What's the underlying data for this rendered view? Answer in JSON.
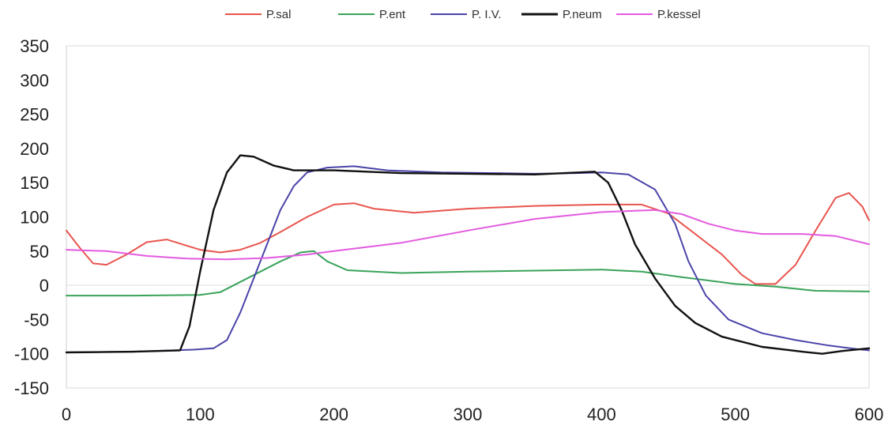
{
  "chart_data": {
    "type": "line",
    "title": "",
    "xlabel": "",
    "ylabel": "",
    "xlim": [
      0,
      600
    ],
    "ylim": [
      -150,
      350
    ],
    "xticks": [
      "0",
      "100",
      "200",
      "300",
      "400",
      "500",
      "600"
    ],
    "yticks": [
      "350",
      "300",
      "250",
      "200",
      "150",
      "100",
      "50",
      "0",
      "-50",
      "-100",
      "-150"
    ],
    "grid": false,
    "legend_position": "top",
    "series": [
      {
        "name": "P.sal",
        "color": "#e8554e",
        "points": [
          [
            0,
            80
          ],
          [
            10,
            55
          ],
          [
            20,
            32
          ],
          [
            30,
            30
          ],
          [
            45,
            45
          ],
          [
            60,
            63
          ],
          [
            75,
            67
          ],
          [
            90,
            58
          ],
          [
            100,
            52
          ],
          [
            115,
            48
          ],
          [
            130,
            52
          ],
          [
            145,
            62
          ],
          [
            160,
            78
          ],
          [
            180,
            100
          ],
          [
            200,
            118
          ],
          [
            215,
            120
          ],
          [
            230,
            112
          ],
          [
            260,
            106
          ],
          [
            300,
            112
          ],
          [
            350,
            116
          ],
          [
            400,
            118
          ],
          [
            430,
            118
          ],
          [
            450,
            105
          ],
          [
            470,
            75
          ],
          [
            490,
            45
          ],
          [
            505,
            15
          ],
          [
            515,
            2
          ],
          [
            530,
            2
          ],
          [
            545,
            30
          ],
          [
            560,
            80
          ],
          [
            575,
            128
          ],
          [
            585,
            135
          ],
          [
            595,
            115
          ],
          [
            600,
            95
          ]
        ]
      },
      {
        "name": "P.ent",
        "color": "#3aa35a",
        "points": [
          [
            0,
            -15
          ],
          [
            50,
            -15
          ],
          [
            100,
            -14
          ],
          [
            115,
            -10
          ],
          [
            130,
            5
          ],
          [
            145,
            20
          ],
          [
            160,
            35
          ],
          [
            175,
            48
          ],
          [
            185,
            50
          ],
          [
            195,
            35
          ],
          [
            210,
            22
          ],
          [
            250,
            18
          ],
          [
            300,
            20
          ],
          [
            400,
            23
          ],
          [
            430,
            20
          ],
          [
            460,
            12
          ],
          [
            500,
            2
          ],
          [
            530,
            -2
          ],
          [
            560,
            -8
          ],
          [
            600,
            -9
          ]
        ]
      },
      {
        "name": "P. I.V.",
        "color": "#4b44a8",
        "points": [
          [
            0,
            -98
          ],
          [
            50,
            -97
          ],
          [
            95,
            -94
          ],
          [
            110,
            -92
          ],
          [
            120,
            -80
          ],
          [
            130,
            -40
          ],
          [
            140,
            10
          ],
          [
            150,
            60
          ],
          [
            160,
            110
          ],
          [
            170,
            145
          ],
          [
            180,
            165
          ],
          [
            195,
            172
          ],
          [
            215,
            174
          ],
          [
            240,
            168
          ],
          [
            280,
            165
          ],
          [
            320,
            164
          ],
          [
            350,
            163
          ],
          [
            380,
            164
          ],
          [
            400,
            165
          ],
          [
            420,
            162
          ],
          [
            440,
            140
          ],
          [
            455,
            90
          ],
          [
            465,
            35
          ],
          [
            478,
            -15
          ],
          [
            495,
            -50
          ],
          [
            520,
            -70
          ],
          [
            545,
            -80
          ],
          [
            570,
            -88
          ],
          [
            590,
            -93
          ],
          [
            600,
            -95
          ]
        ]
      },
      {
        "name": "P.neum",
        "color": "#111111",
        "points": [
          [
            0,
            -98
          ],
          [
            50,
            -97
          ],
          [
            85,
            -95
          ],
          [
            92,
            -60
          ],
          [
            100,
            20
          ],
          [
            110,
            110
          ],
          [
            120,
            165
          ],
          [
            130,
            190
          ],
          [
            140,
            188
          ],
          [
            155,
            175
          ],
          [
            170,
            168
          ],
          [
            200,
            168
          ],
          [
            250,
            164
          ],
          [
            300,
            163
          ],
          [
            350,
            162
          ],
          [
            395,
            166
          ],
          [
            405,
            150
          ],
          [
            415,
            110
          ],
          [
            425,
            60
          ],
          [
            440,
            10
          ],
          [
            455,
            -30
          ],
          [
            470,
            -55
          ],
          [
            490,
            -75
          ],
          [
            520,
            -90
          ],
          [
            550,
            -97
          ],
          [
            565,
            -100
          ],
          [
            580,
            -96
          ],
          [
            600,
            -92
          ]
        ]
      },
      {
        "name": "P.kessel",
        "color": "#e35be0",
        "points": [
          [
            0,
            52
          ],
          [
            30,
            50
          ],
          [
            60,
            43
          ],
          [
            90,
            39
          ],
          [
            120,
            38
          ],
          [
            150,
            40
          ],
          [
            180,
            45
          ],
          [
            200,
            50
          ],
          [
            250,
            62
          ],
          [
            300,
            80
          ],
          [
            350,
            97
          ],
          [
            400,
            107
          ],
          [
            440,
            110
          ],
          [
            460,
            104
          ],
          [
            480,
            90
          ],
          [
            500,
            80
          ],
          [
            520,
            75
          ],
          [
            550,
            75
          ],
          [
            575,
            72
          ],
          [
            600,
            60
          ]
        ]
      }
    ]
  }
}
